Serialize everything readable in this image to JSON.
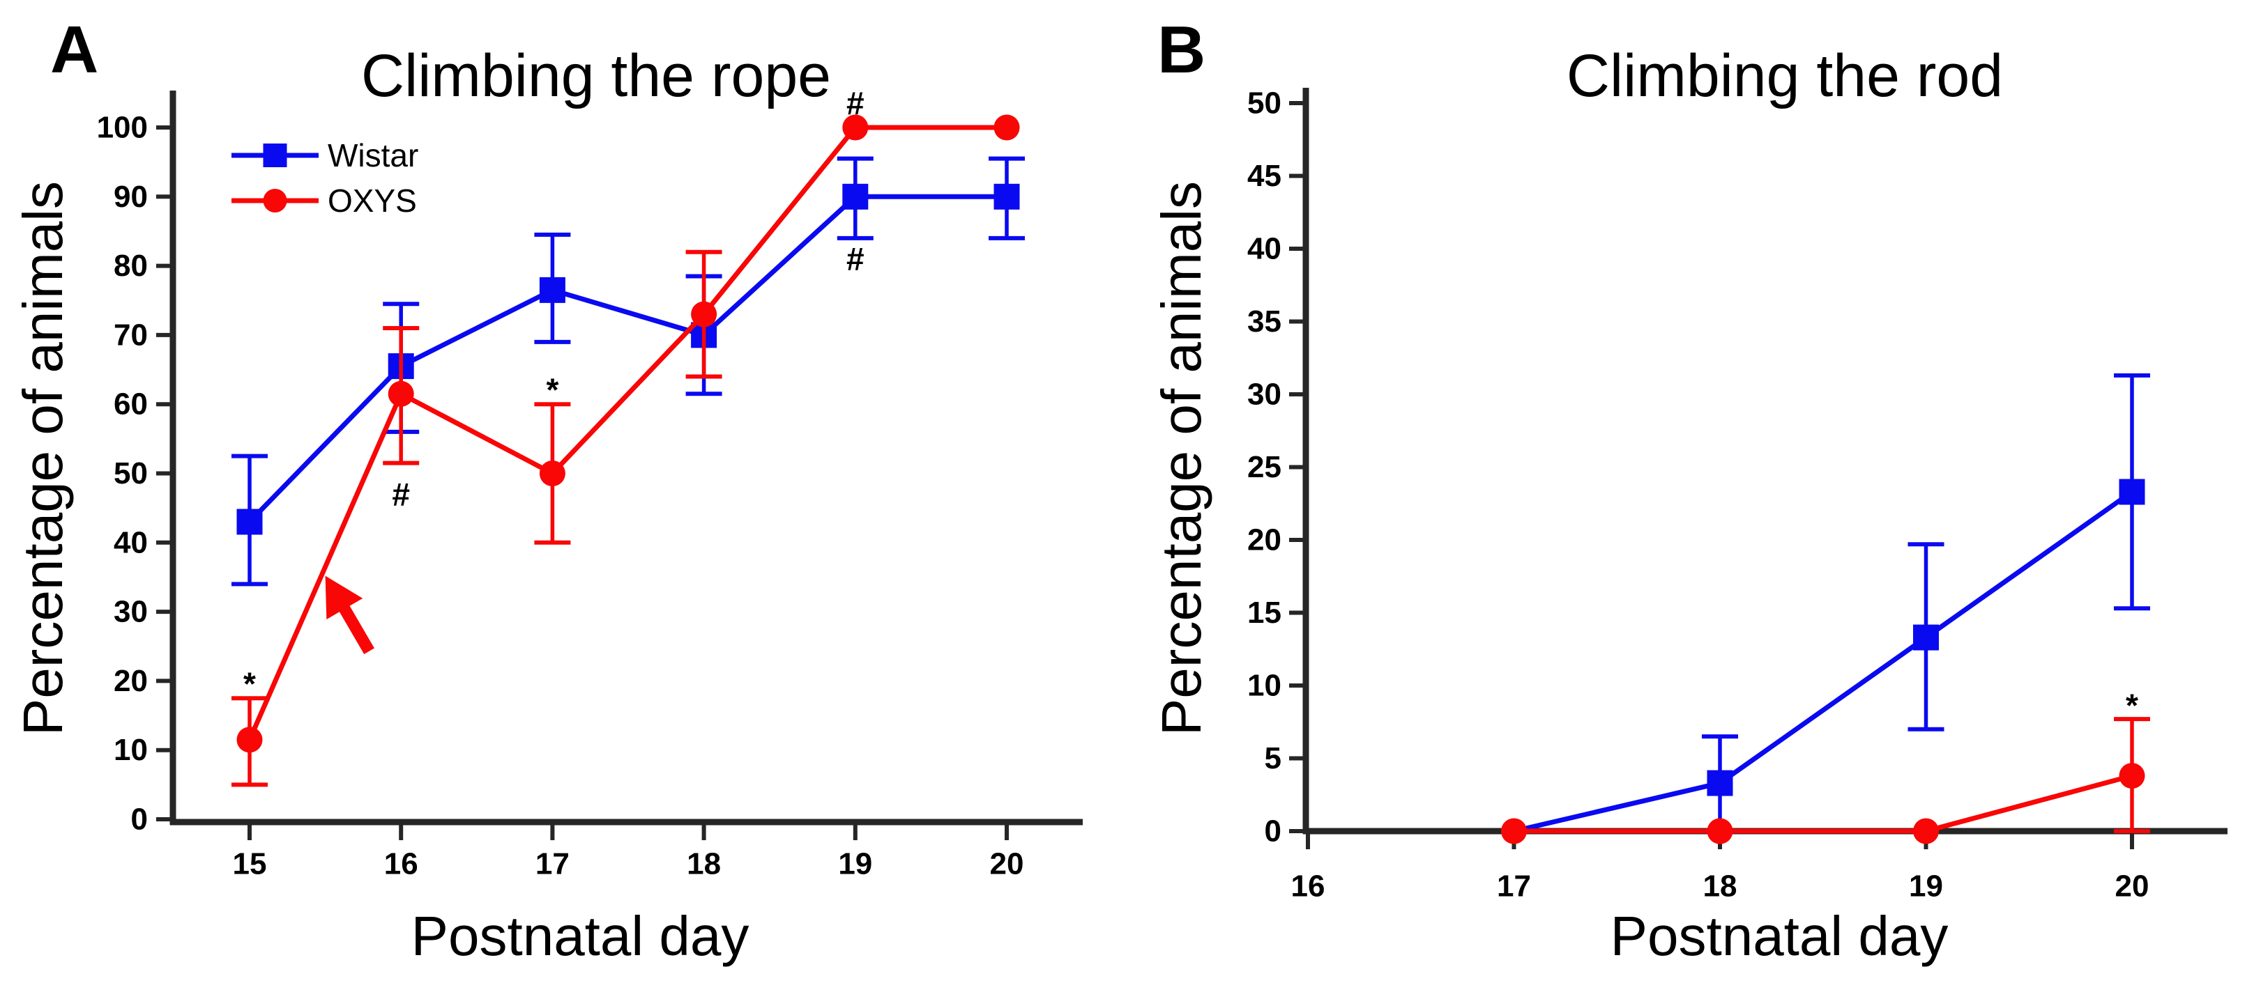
{
  "figure": {
    "background": "#ffffff",
    "axis_color": "#262626",
    "text_color": "#000000",
    "wistar_color": "#0a0af0",
    "oxys_color": "#f90606"
  },
  "chart_data": [
    {
      "type": "line",
      "panel_label": "A",
      "title": "Climbing the rope",
      "xlabel": "Postnatal day",
      "ylabel": "Percentage of animals",
      "xticks": [
        15,
        16,
        17,
        18,
        19,
        20
      ],
      "yticks": [
        0,
        10,
        20,
        30,
        40,
        50,
        60,
        70,
        80,
        90,
        100
      ],
      "xlim": [
        14.5,
        20.5
      ],
      "ylim": [
        0,
        105
      ],
      "legend_position": "top-left",
      "series": [
        {
          "name": "Wistar",
          "color": "#0a0af0",
          "marker": "square",
          "x": [
            15,
            16,
            17,
            18,
            19,
            20
          ],
          "values": [
            43,
            65.5,
            76.5,
            70,
            90,
            90
          ],
          "err_lo": [
            34,
            56,
            69,
            61.5,
            84,
            84
          ],
          "err_hi": [
            52.5,
            74.5,
            84.5,
            78.5,
            95.5,
            95.5
          ]
        },
        {
          "name": "OXYS",
          "color": "#f90606",
          "marker": "circle",
          "x": [
            15,
            16,
            17,
            18,
            19,
            20
          ],
          "values": [
            11.5,
            61.5,
            50,
            73,
            100,
            100
          ],
          "err_lo": [
            5,
            51.5,
            40,
            64,
            null,
            null
          ],
          "err_hi": [
            17.5,
            71,
            60,
            82,
            null,
            null
          ]
        }
      ],
      "annotations": [
        {
          "text": "*",
          "x": 15,
          "y": 21
        },
        {
          "text": "#",
          "x": 16,
          "y": 47
        },
        {
          "text": "*",
          "x": 17,
          "y": 63.5
        },
        {
          "text": "#",
          "x": 19,
          "y": 103.5
        },
        {
          "text": "#",
          "x": 19,
          "y": 81
        }
      ],
      "arrow": {
        "from_x": 15.79,
        "from_y": 24.3,
        "to_x": 15.5,
        "to_y": 35.2,
        "color": "#f90606"
      }
    },
    {
      "type": "line",
      "panel_label": "B",
      "title": "Climbing the rod",
      "xlabel": "Postnatal day",
      "ylabel": "Percentage of animals",
      "xticks": [
        16,
        17,
        18,
        19,
        20
      ],
      "yticks": [
        0,
        5,
        10,
        15,
        20,
        25,
        30,
        35,
        40,
        45,
        50
      ],
      "xlim": [
        16,
        20.5
      ],
      "ylim": [
        0,
        50
      ],
      "series": [
        {
          "name": "Wistar",
          "color": "#0a0af0",
          "marker": "square",
          "x": [
            17,
            18,
            19,
            20
          ],
          "values": [
            0,
            3.3,
            13.3,
            23.3
          ],
          "err_lo": [
            null,
            0,
            7,
            15.3
          ],
          "err_hi": [
            null,
            6.5,
            19.7,
            31.3
          ],
          "hide_marker_at": [
            17
          ]
        },
        {
          "name": "OXYS",
          "color": "#f90606",
          "marker": "circle",
          "x": [
            17,
            18,
            19,
            20
          ],
          "values": [
            0,
            0,
            0,
            3.8
          ],
          "err_lo": [
            null,
            null,
            null,
            0
          ],
          "err_hi": [
            null,
            null,
            null,
            7.7
          ]
        }
      ],
      "annotations": [
        {
          "text": "*",
          "x": 20,
          "y": 9.3
        }
      ]
    }
  ]
}
